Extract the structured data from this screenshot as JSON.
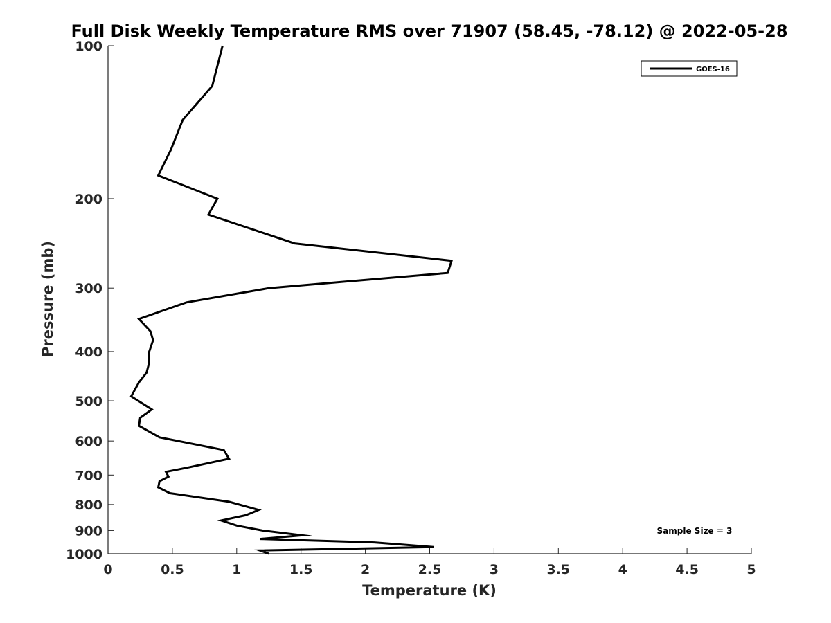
{
  "chart_data": {
    "type": "line",
    "title": "Full Disk Weekly Temperature RMS over 71907 (58.45, -78.12) @ 2022-05-28",
    "xlabel": "Temperature (K)",
    "ylabel": "Pressure (mb)",
    "xlim": [
      0,
      5
    ],
    "ylim": [
      1000,
      100
    ],
    "y_scale": "log",
    "x_ticks": [
      0,
      0.5,
      1,
      1.5,
      2,
      2.5,
      3,
      3.5,
      4,
      4.5,
      5
    ],
    "x_tick_labels": [
      "0",
      "0.5",
      "1",
      "1.5",
      "2",
      "2.5",
      "3",
      "3.5",
      "4",
      "4.5",
      "5"
    ],
    "y_ticks": [
      100,
      200,
      300,
      400,
      500,
      600,
      700,
      800,
      900,
      1000
    ],
    "y_tick_labels": [
      "100",
      "200",
      "300",
      "400",
      "500",
      "600",
      "700",
      "800",
      "900",
      "1000"
    ],
    "grid": false,
    "legend": {
      "position": "top-right",
      "entries": [
        "GOES-16"
      ]
    },
    "annotation": "Sample Size = 3",
    "series": [
      {
        "name": "GOES-16",
        "color": "#000000",
        "x": [
          0.89,
          0.81,
          0.58,
          0.49,
          0.39,
          0.85,
          0.78,
          1.45,
          2.67,
          2.64,
          1.25,
          0.61,
          0.24,
          0.33,
          0.35,
          0.32,
          0.32,
          0.3,
          0.24,
          0.18,
          0.34,
          0.25,
          0.24,
          0.4,
          0.9,
          0.94,
          0.64,
          0.45,
          0.47,
          0.4,
          0.39,
          0.48,
          0.94,
          1.17,
          1.07,
          0.88,
          1.0,
          1.2,
          1.51,
          1.18,
          2.07,
          2.53,
          1.18,
          1.25
        ],
        "y": [
          100,
          120,
          140,
          160,
          180,
          200,
          215,
          245,
          265,
          280,
          300,
          320,
          345,
          365,
          380,
          400,
          420,
          440,
          460,
          490,
          520,
          540,
          560,
          590,
          625,
          650,
          675,
          690,
          705,
          720,
          740,
          760,
          790,
          820,
          840,
          860,
          880,
          900,
          920,
          935,
          950,
          970,
          985,
          1000
        ]
      }
    ]
  }
}
